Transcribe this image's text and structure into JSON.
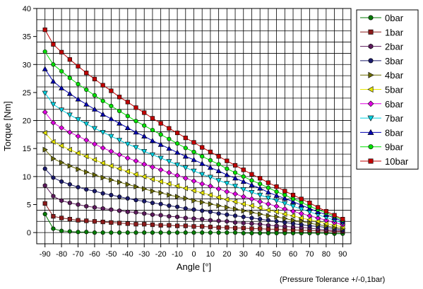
{
  "note": "(Pressure Tolerance +/-0,1bar)",
  "chart_data": {
    "type": "line",
    "title": "",
    "xlabel": "Angle [°]",
    "ylabel": "Torque [Nm]",
    "xlim": [
      -95,
      95
    ],
    "ylim": [
      -2,
      40
    ],
    "x_ticks": [
      -90,
      -80,
      -70,
      -60,
      -50,
      -40,
      -30,
      -20,
      -10,
      0,
      10,
      20,
      30,
      40,
      50,
      60,
      70,
      80,
      90
    ],
    "y_ticks": [
      0,
      5,
      10,
      15,
      20,
      25,
      30,
      35,
      40
    ],
    "grid": true,
    "legend_position": "right",
    "x": [
      -90,
      -85,
      -80,
      -75,
      -70,
      -65,
      -60,
      -55,
      -50,
      -45,
      -40,
      -35,
      -30,
      -25,
      -20,
      -15,
      -10,
      -5,
      0,
      5,
      10,
      15,
      20,
      25,
      30,
      35,
      40,
      45,
      50,
      55,
      60,
      65,
      70,
      75,
      80,
      85,
      90
    ],
    "series": [
      {
        "name": "0bar",
        "color": "#007a00",
        "marker": "circle",
        "values": [
          3.3,
          0.7,
          0.3,
          0.2,
          0.1,
          0.1,
          0.0,
          0.0,
          0.0,
          0.0,
          0.0,
          0.0,
          0.0,
          0.0,
          0.0,
          0.0,
          0.0,
          0.0,
          0.0,
          0.0,
          0.0,
          0.0,
          0.0,
          0.0,
          -0.1,
          -0.1,
          -0.1,
          -0.1,
          -0.1,
          -0.1,
          -0.1,
          -0.1,
          -0.1,
          -0.1,
          -0.1,
          -0.2,
          -0.2
        ]
      },
      {
        "name": "1bar",
        "color": "#8b1a1a",
        "marker": "square",
        "values": [
          5.2,
          2.9,
          2.6,
          2.4,
          2.2,
          2.1,
          2.0,
          1.9,
          1.8,
          1.7,
          1.6,
          1.5,
          1.5,
          1.4,
          1.3,
          1.3,
          1.2,
          1.2,
          1.1,
          1.1,
          1.0,
          0.9,
          0.9,
          0.8,
          0.8,
          0.7,
          0.7,
          0.6,
          0.6,
          0.5,
          0.5,
          0.4,
          0.4,
          0.3,
          0.3,
          0.2,
          0.2
        ]
      },
      {
        "name": "2bar",
        "color": "#5c1a5c",
        "marker": "hexagon",
        "values": [
          8.4,
          6.5,
          5.7,
          5.3,
          5.0,
          4.7,
          4.5,
          4.3,
          4.1,
          3.9,
          3.7,
          3.6,
          3.4,
          3.2,
          3.1,
          2.9,
          2.8,
          2.6,
          2.5,
          2.4,
          2.2,
          2.1,
          2.0,
          1.8,
          1.7,
          1.6,
          1.5,
          1.3,
          1.2,
          1.1,
          1.0,
          0.9,
          0.8,
          0.6,
          0.5,
          0.4,
          0.3
        ]
      },
      {
        "name": "3bar",
        "color": "#1a1a6b",
        "marker": "circle",
        "values": [
          11.4,
          9.8,
          9.1,
          8.6,
          8.1,
          7.7,
          7.4,
          7.0,
          6.7,
          6.4,
          6.1,
          5.8,
          5.6,
          5.3,
          5.1,
          4.8,
          4.6,
          4.3,
          4.1,
          3.9,
          3.7,
          3.4,
          3.2,
          3.0,
          2.8,
          2.6,
          2.4,
          2.2,
          2.0,
          1.8,
          1.6,
          1.4,
          1.2,
          1.1,
          0.9,
          0.7,
          0.5
        ]
      },
      {
        "name": "4bar",
        "color": "#6b6b00",
        "marker": "triangle-right",
        "values": [
          14.8,
          13.2,
          12.5,
          11.9,
          11.3,
          10.8,
          10.3,
          9.8,
          9.4,
          9.0,
          8.6,
          8.2,
          7.8,
          7.4,
          7.1,
          6.7,
          6.4,
          6.1,
          5.7,
          5.4,
          5.1,
          4.8,
          4.5,
          4.2,
          3.9,
          3.6,
          3.3,
          3.0,
          2.8,
          2.5,
          2.2,
          2.0,
          1.7,
          1.4,
          1.2,
          0.9,
          0.7
        ]
      },
      {
        "name": "5bar",
        "color": "#e6e600",
        "marker": "triangle-left",
        "values": [
          17.8,
          16.2,
          15.5,
          14.8,
          14.2,
          13.6,
          13.0,
          12.4,
          11.9,
          11.4,
          10.9,
          10.4,
          10.0,
          9.5,
          9.1,
          8.7,
          8.3,
          7.9,
          7.5,
          7.1,
          6.7,
          6.3,
          5.9,
          5.5,
          5.1,
          4.8,
          4.4,
          4.0,
          3.7,
          3.3,
          3.0,
          2.6,
          2.3,
          2.0,
          1.6,
          1.3,
          1.0
        ]
      },
      {
        "name": "6bar",
        "color": "#e000e0",
        "marker": "diamond",
        "values": [
          21.5,
          19.6,
          18.7,
          17.9,
          17.2,
          16.5,
          15.8,
          15.1,
          14.5,
          13.9,
          13.3,
          12.8,
          12.2,
          11.7,
          11.2,
          10.7,
          10.2,
          9.7,
          9.2,
          8.7,
          8.3,
          7.8,
          7.3,
          6.9,
          6.4,
          6.0,
          5.5,
          5.1,
          4.7,
          4.2,
          3.8,
          3.4,
          3.0,
          2.6,
          2.2,
          1.8,
          1.4
        ]
      },
      {
        "name": "7bar",
        "color": "#00d0e0",
        "marker": "triangle-down",
        "values": [
          24.9,
          22.9,
          21.9,
          21.0,
          20.2,
          19.4,
          18.6,
          17.9,
          17.2,
          16.5,
          15.8,
          15.2,
          14.5,
          13.9,
          13.3,
          12.7,
          12.1,
          11.6,
          11.0,
          10.4,
          9.9,
          9.3,
          8.8,
          8.3,
          7.7,
          7.2,
          6.7,
          6.2,
          5.7,
          5.2,
          4.7,
          4.2,
          3.7,
          3.2,
          2.7,
          2.2,
          1.7
        ]
      },
      {
        "name": "8bar",
        "color": "#0000b0",
        "marker": "triangle-up",
        "values": [
          29.2,
          27.0,
          25.8,
          24.8,
          23.8,
          22.9,
          22.0,
          21.1,
          20.3,
          19.5,
          18.7,
          17.9,
          17.2,
          16.4,
          15.7,
          15.0,
          14.3,
          13.6,
          13.0,
          12.3,
          11.6,
          11.0,
          10.3,
          9.7,
          9.1,
          8.5,
          7.9,
          7.2,
          6.6,
          6.1,
          5.5,
          4.9,
          4.3,
          3.7,
          3.2,
          2.6,
          2.0
        ]
      },
      {
        "name": "9bar",
        "color": "#00e000",
        "marker": "circle",
        "values": [
          32.3,
          30.0,
          28.8,
          27.6,
          26.5,
          25.5,
          24.5,
          23.5,
          22.6,
          21.7,
          20.8,
          19.9,
          19.1,
          18.3,
          17.5,
          16.7,
          15.9,
          15.1,
          14.4,
          13.6,
          12.9,
          12.2,
          11.4,
          10.7,
          10.0,
          9.3,
          8.7,
          8.0,
          7.3,
          6.7,
          6.0,
          5.4,
          4.7,
          4.1,
          3.5,
          2.9,
          2.2
        ]
      },
      {
        "name": "10bar",
        "color": "#c00000",
        "marker": "square",
        "values": [
          36.2,
          33.6,
          32.2,
          30.9,
          29.7,
          28.5,
          27.4,
          26.3,
          25.3,
          24.2,
          23.3,
          22.3,
          21.4,
          20.4,
          19.5,
          18.6,
          17.8,
          16.9,
          16.1,
          15.2,
          14.4,
          13.6,
          12.8,
          12.0,
          11.2,
          10.4,
          9.7,
          8.9,
          8.2,
          7.4,
          6.7,
          6.0,
          5.3,
          4.5,
          3.8,
          3.1,
          2.4
        ]
      }
    ]
  }
}
